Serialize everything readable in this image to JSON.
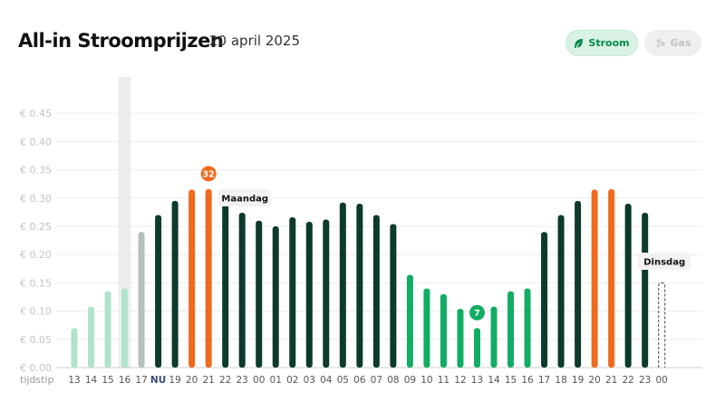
{
  "header": {
    "title": "All-in Stroomprijzen",
    "date": "20 april 2025"
  },
  "toggle": {
    "stroom_label": "Stroom",
    "gas_label": "Gas",
    "stroom_icon": "leaf-icon",
    "gas_icon": "bubbles-icon"
  },
  "colors": {
    "past": "#b0e3c9",
    "past_latest": "#b3c2bc",
    "normal": "#0c3a2c",
    "high": "#ef6a1d",
    "low": "#12ad64",
    "grid": "#ebebeb",
    "highlight_column": "#ededed"
  },
  "chart_data": {
    "type": "bar",
    "title": "All-in Stroomprijzen",
    "xlabel": "tijdstip",
    "ylabel": "",
    "ylim": [
      0,
      0.5
    ],
    "yticks": [
      "€ 0.00",
      "€ 0.05",
      "€ 0.10",
      "€ 0.15",
      "€ 0.20",
      "€ 0.25",
      "€ 0.30",
      "€ 0.35",
      "€ 0.40",
      "€ 0.45"
    ],
    "ytick_values": [
      0,
      0.05,
      0.1,
      0.15,
      0.2,
      0.25,
      0.3,
      0.35,
      0.4,
      0.45
    ],
    "categories": [
      "13",
      "14",
      "15",
      "16",
      "17",
      "NU",
      "19",
      "20",
      "21",
      "22",
      "23",
      "00",
      "01",
      "02",
      "03",
      "04",
      "05",
      "06",
      "07",
      "08",
      "09",
      "10",
      "11",
      "12",
      "13",
      "14",
      "15",
      "16",
      "17",
      "18",
      "19",
      "20",
      "21",
      "22",
      "23",
      "00"
    ],
    "values": [
      0.07,
      0.108,
      0.135,
      0.14,
      0.24,
      0.27,
      0.295,
      0.315,
      0.316,
      0.29,
      0.274,
      0.26,
      0.25,
      0.266,
      0.258,
      0.262,
      0.292,
      0.29,
      0.27,
      0.254,
      0.164,
      0.14,
      0.13,
      0.104,
      0.07,
      0.108,
      0.135,
      0.14,
      0.24,
      0.27,
      0.295,
      0.315,
      0.316,
      0.29,
      0.274,
      0.15
    ],
    "kinds": [
      "past",
      "past",
      "past",
      "past",
      "past_latest",
      "normal",
      "normal",
      "high",
      "high",
      "normal",
      "normal",
      "normal",
      "normal",
      "normal",
      "normal",
      "normal",
      "normal",
      "normal",
      "normal",
      "normal",
      "low",
      "low",
      "low",
      "low",
      "low",
      "low",
      "low",
      "low",
      "normal",
      "normal",
      "normal",
      "high",
      "high",
      "normal",
      "normal",
      "pending"
    ],
    "current_index": 5,
    "highlight_index": 3,
    "badges": [
      {
        "index": 8,
        "text": "32",
        "kind": "high"
      },
      {
        "index": 24,
        "text": "7",
        "kind": "low"
      }
    ],
    "day_labels": [
      {
        "index": 10,
        "text": "Maandag"
      },
      {
        "index": 35,
        "text": "Dinsdag"
      }
    ]
  }
}
